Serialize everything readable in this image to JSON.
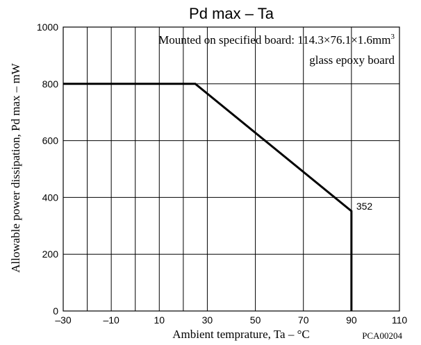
{
  "chart_data": {
    "type": "line",
    "title": "Pd max – Ta",
    "xlabel": "Ambient temprature,  Ta – °C",
    "ylabel": "Allowable power dissipation,  Pd max – mW",
    "xlim": [
      -30,
      110
    ],
    "ylim": [
      0,
      1000
    ],
    "x_ticks": [
      -30,
      -10,
      10,
      30,
      50,
      70,
      90,
      110
    ],
    "x_tick_labels": [
      "–30",
      "–10",
      "10",
      "30",
      "50",
      "70",
      "90",
      "110"
    ],
    "x_gridlines": [
      -30,
      -20,
      -10,
      0,
      10,
      20,
      30,
      50,
      70,
      90,
      110
    ],
    "y_ticks": [
      0,
      200,
      400,
      600,
      800,
      1000
    ],
    "y_tick_labels": [
      "0",
      "200",
      "400",
      "600",
      "800",
      "1000"
    ],
    "grid": true,
    "series": [
      {
        "x": [
          -30,
          25,
          90,
          90
        ],
        "y": [
          800,
          800,
          352,
          0
        ]
      }
    ],
    "annotations": [
      {
        "text": "352",
        "x": 90,
        "y": 352
      }
    ],
    "note_line1": "Mounted on specified board: 114.3×76.1×1.6mm",
    "note_line1_sup": "3",
    "note_line2": "glass epoxy board",
    "code": "PCA00204",
    "colors": {
      "line": "#000000",
      "grid": "#000000",
      "background": "#ffffff"
    }
  }
}
